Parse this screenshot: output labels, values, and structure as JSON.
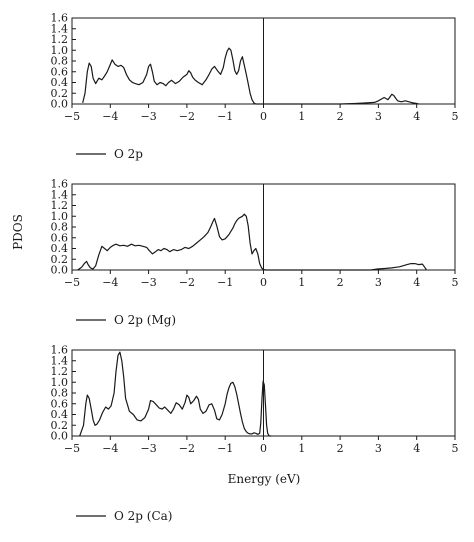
{
  "figure": {
    "ylabel": "PDOS",
    "xlabel": "Energy (eV)",
    "line_color": "#1a1a1a"
  },
  "chart_data": [
    {
      "type": "line",
      "legend": "O 2p",
      "xlim": [
        -5,
        5
      ],
      "ylim": [
        0,
        1.6
      ],
      "xticks": [
        -5,
        -4,
        -3,
        -2,
        -1,
        0,
        1,
        2,
        3,
        4,
        5
      ],
      "yticks": [
        "0.0",
        "0.2",
        "0.4",
        "0.6",
        "0.8",
        "1.0",
        "1.2",
        "1.4",
        "1.6"
      ],
      "fermi_line": 0,
      "series": [
        {
          "x": [
            -4.72,
            -4.66,
            -4.6,
            -4.55,
            -4.5,
            -4.45,
            -4.38,
            -4.3,
            -4.22,
            -4.15,
            -4.08,
            -4.02,
            -3.95,
            -3.88,
            -3.8,
            -3.72,
            -3.65,
            -3.58,
            -3.5,
            -3.42,
            -3.35,
            -3.25,
            -3.15,
            -3.05,
            -3.0,
            -2.95,
            -2.9,
            -2.85,
            -2.78,
            -2.7,
            -2.62,
            -2.55,
            -2.48,
            -2.4,
            -2.3,
            -2.2,
            -2.1,
            -2.0,
            -1.95,
            -1.9,
            -1.85,
            -1.78,
            -1.7,
            -1.6,
            -1.5,
            -1.42,
            -1.35,
            -1.28,
            -1.2,
            -1.12,
            -1.05,
            -1.0,
            -0.95,
            -0.9,
            -0.85,
            -0.8,
            -0.75,
            -0.7,
            -0.65,
            -0.6,
            -0.55,
            -0.5,
            -0.45,
            -0.4,
            -0.35,
            -0.3,
            -0.25,
            -0.2,
            -0.15,
            -0.1,
            -0.05,
            0.0,
            0.05,
            0.1,
            0.5,
            1.0,
            1.5,
            2.0,
            2.4,
            2.7,
            2.9,
            3.0,
            3.1,
            3.15,
            3.2,
            3.25,
            3.3,
            3.35,
            3.4,
            3.45,
            3.5,
            3.6,
            3.7,
            3.8,
            3.9,
            4.0,
            4.05
          ],
          "y": [
            0.02,
            0.2,
            0.6,
            0.76,
            0.7,
            0.48,
            0.38,
            0.48,
            0.45,
            0.52,
            0.6,
            0.7,
            0.82,
            0.74,
            0.7,
            0.72,
            0.68,
            0.55,
            0.45,
            0.4,
            0.38,
            0.36,
            0.4,
            0.55,
            0.7,
            0.74,
            0.6,
            0.42,
            0.36,
            0.4,
            0.38,
            0.34,
            0.4,
            0.44,
            0.38,
            0.42,
            0.5,
            0.55,
            0.62,
            0.58,
            0.5,
            0.44,
            0.4,
            0.36,
            0.45,
            0.55,
            0.65,
            0.7,
            0.62,
            0.55,
            0.68,
            0.86,
            0.98,
            1.04,
            1.0,
            0.82,
            0.62,
            0.55,
            0.62,
            0.8,
            0.88,
            0.72,
            0.55,
            0.38,
            0.2,
            0.08,
            0.02,
            0.0,
            0.0,
            0.0,
            0.0,
            0.0,
            0.0,
            0.0,
            0.0,
            0.0,
            0.0,
            0.0,
            0.01,
            0.02,
            0.03,
            0.06,
            0.1,
            0.12,
            0.1,
            0.08,
            0.13,
            0.18,
            0.16,
            0.11,
            0.06,
            0.04,
            0.06,
            0.04,
            0.02,
            0.01,
            0.0
          ]
        }
      ]
    },
    {
      "type": "line",
      "legend": "O 2p (Mg)",
      "xlim": [
        -5,
        5
      ],
      "ylim": [
        0,
        1.6
      ],
      "xticks": [
        -5,
        -4,
        -3,
        -2,
        -1,
        0,
        1,
        2,
        3,
        4,
        5
      ],
      "yticks": [
        "0.0",
        "0.2",
        "0.4",
        "0.6",
        "0.8",
        "1.0",
        "1.2",
        "1.4",
        "1.6"
      ],
      "fermi_line": 0,
      "series": [
        {
          "x": [
            -4.85,
            -4.75,
            -4.68,
            -4.62,
            -4.58,
            -4.52,
            -4.45,
            -4.38,
            -4.3,
            -4.22,
            -4.15,
            -4.08,
            -4.0,
            -3.92,
            -3.85,
            -3.75,
            -3.65,
            -3.55,
            -3.45,
            -3.35,
            -3.25,
            -3.15,
            -3.05,
            -2.98,
            -2.9,
            -2.82,
            -2.75,
            -2.68,
            -2.6,
            -2.52,
            -2.45,
            -2.35,
            -2.25,
            -2.15,
            -2.05,
            -1.95,
            -1.85,
            -1.75,
            -1.65,
            -1.55,
            -1.45,
            -1.38,
            -1.32,
            -1.28,
            -1.22,
            -1.15,
            -1.08,
            -1.0,
            -0.95,
            -0.9,
            -0.85,
            -0.8,
            -0.75,
            -0.7,
            -0.65,
            -0.6,
            -0.55,
            -0.5,
            -0.45,
            -0.4,
            -0.35,
            -0.3,
            -0.25,
            -0.2,
            -0.15,
            -0.1,
            -0.05,
            0.0,
            0.05,
            0.1,
            0.5,
            1.0,
            1.5,
            2.0,
            2.5,
            2.8,
            3.0,
            3.2,
            3.35,
            3.45,
            3.55,
            3.65,
            3.75,
            3.85,
            3.95,
            4.05,
            4.15,
            4.2,
            4.25
          ],
          "y": [
            0.0,
            0.05,
            0.12,
            0.16,
            0.1,
            0.04,
            0.02,
            0.08,
            0.28,
            0.44,
            0.4,
            0.36,
            0.42,
            0.46,
            0.48,
            0.45,
            0.46,
            0.44,
            0.48,
            0.45,
            0.46,
            0.44,
            0.42,
            0.36,
            0.3,
            0.34,
            0.38,
            0.36,
            0.4,
            0.38,
            0.34,
            0.38,
            0.36,
            0.38,
            0.42,
            0.4,
            0.44,
            0.5,
            0.56,
            0.62,
            0.7,
            0.8,
            0.9,
            0.96,
            0.82,
            0.62,
            0.56,
            0.58,
            0.62,
            0.66,
            0.72,
            0.78,
            0.86,
            0.92,
            0.96,
            0.98,
            1.0,
            1.04,
            1.0,
            0.82,
            0.5,
            0.3,
            0.36,
            0.4,
            0.3,
            0.12,
            0.04,
            0.01,
            0.0,
            0.0,
            0.0,
            0.0,
            0.0,
            0.0,
            0.0,
            0.0,
            0.02,
            0.03,
            0.04,
            0.05,
            0.06,
            0.08,
            0.1,
            0.12,
            0.12,
            0.1,
            0.11,
            0.06,
            0.01
          ]
        }
      ]
    },
    {
      "type": "line",
      "legend": "O 2p (Ca)",
      "xlim": [
        -5,
        5
      ],
      "ylim": [
        0,
        1.6
      ],
      "xticks": [
        -5,
        -4,
        -3,
        -2,
        -1,
        0,
        1,
        2,
        3,
        4,
        5
      ],
      "yticks": [
        "0.0",
        "0.2",
        "0.4",
        "0.6",
        "0.8",
        "1.0",
        "1.2",
        "1.4",
        "1.6"
      ],
      "xlabel": "Energy (eV)",
      "fermi_line": 0,
      "series": [
        {
          "x": [
            -4.8,
            -4.7,
            -4.64,
            -4.6,
            -4.55,
            -4.5,
            -4.45,
            -4.4,
            -4.35,
            -4.28,
            -4.2,
            -4.12,
            -4.05,
            -3.98,
            -3.9,
            -3.85,
            -3.8,
            -3.75,
            -3.7,
            -3.65,
            -3.6,
            -3.5,
            -3.4,
            -3.3,
            -3.2,
            -3.1,
            -3.0,
            -2.95,
            -2.88,
            -2.8,
            -2.72,
            -2.65,
            -2.58,
            -2.5,
            -2.42,
            -2.35,
            -2.28,
            -2.2,
            -2.12,
            -2.05,
            -2.0,
            -1.95,
            -1.9,
            -1.82,
            -1.75,
            -1.7,
            -1.65,
            -1.58,
            -1.5,
            -1.42,
            -1.35,
            -1.28,
            -1.22,
            -1.15,
            -1.08,
            -1.0,
            -0.95,
            -0.9,
            -0.85,
            -0.8,
            -0.75,
            -0.7,
            -0.65,
            -0.6,
            -0.55,
            -0.5,
            -0.45,
            -0.4,
            -0.35,
            -0.3,
            -0.25,
            -0.2,
            -0.15,
            -0.1,
            -0.07,
            -0.04,
            -0.01,
            0.02,
            0.05,
            0.08,
            0.11,
            0.14,
            0.17,
            0.2
          ],
          "y": [
            0.0,
            0.2,
            0.6,
            0.76,
            0.7,
            0.5,
            0.3,
            0.2,
            0.22,
            0.3,
            0.44,
            0.54,
            0.5,
            0.56,
            0.8,
            1.2,
            1.5,
            1.56,
            1.4,
            1.1,
            0.7,
            0.46,
            0.4,
            0.3,
            0.28,
            0.34,
            0.5,
            0.66,
            0.64,
            0.58,
            0.52,
            0.5,
            0.54,
            0.48,
            0.42,
            0.5,
            0.62,
            0.58,
            0.5,
            0.62,
            0.76,
            0.72,
            0.6,
            0.66,
            0.74,
            0.68,
            0.5,
            0.42,
            0.46,
            0.58,
            0.6,
            0.48,
            0.32,
            0.3,
            0.4,
            0.6,
            0.78,
            0.9,
            0.98,
            1.0,
            0.92,
            0.78,
            0.6,
            0.42,
            0.26,
            0.14,
            0.08,
            0.05,
            0.04,
            0.04,
            0.06,
            0.05,
            0.03,
            0.05,
            0.25,
            0.7,
            1.02,
            0.95,
            0.6,
            0.2,
            0.05,
            0.01,
            0.0,
            0.0
          ]
        }
      ]
    }
  ]
}
